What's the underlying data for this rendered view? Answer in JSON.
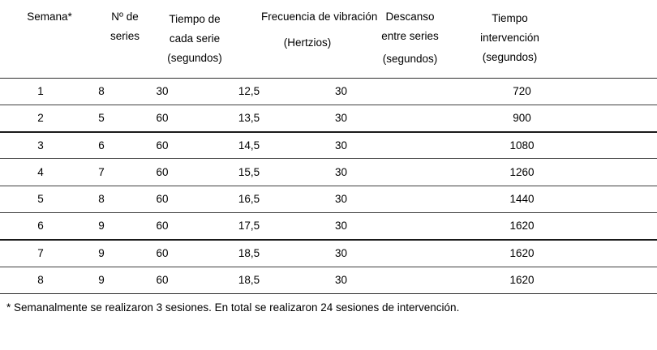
{
  "table": {
    "columns": [
      {
        "id": "semana",
        "header_lines": [
          "Semana*"
        ]
      },
      {
        "id": "num_series",
        "header_lines": [
          "Nº de",
          "series"
        ]
      },
      {
        "id": "tiempo_serie",
        "header_lines": [
          "Tiempo de",
          "cada serie",
          "(segundos)"
        ]
      },
      {
        "id": "frecuencia",
        "header_lines": [
          "Frecuencia de vibración",
          "(Hertzios)"
        ]
      },
      {
        "id": "descanso",
        "header_lines": [
          "Descanso",
          "entre series",
          "(segundos)"
        ]
      },
      {
        "id": "tiempo_intervencion",
        "header_lines": [
          "Tiempo",
          "intervención",
          "(segundos)"
        ]
      }
    ],
    "rows": [
      [
        "1",
        "8",
        "30",
        "12,5",
        "30",
        "720"
      ],
      [
        "2",
        "5",
        "60",
        "13,5",
        "30",
        "900"
      ],
      [
        "3",
        "6",
        "60",
        "14,5",
        "30",
        "1080"
      ],
      [
        "4",
        "7",
        "60",
        "15,5",
        "30",
        "1260"
      ],
      [
        "5",
        "8",
        "60",
        "16,5",
        "30",
        "1440"
      ],
      [
        "6",
        "9",
        "60",
        "17,5",
        "30",
        "1620"
      ],
      [
        "7",
        "9",
        "60",
        "18,5",
        "30",
        "1620"
      ],
      [
        "8",
        "9",
        "60",
        "18,5",
        "30",
        "1620"
      ]
    ],
    "thick_border_after_rows": [
      2,
      6
    ]
  },
  "footnote": "* Semanalmente se realizaron 3 sesiones. En total se realizaron 24 sesiones de intervención.",
  "colors": {
    "text": "#000000",
    "rule_normal": "#3f3f3f",
    "rule_thick": "#1a1a1a",
    "background": "#ffffff"
  }
}
